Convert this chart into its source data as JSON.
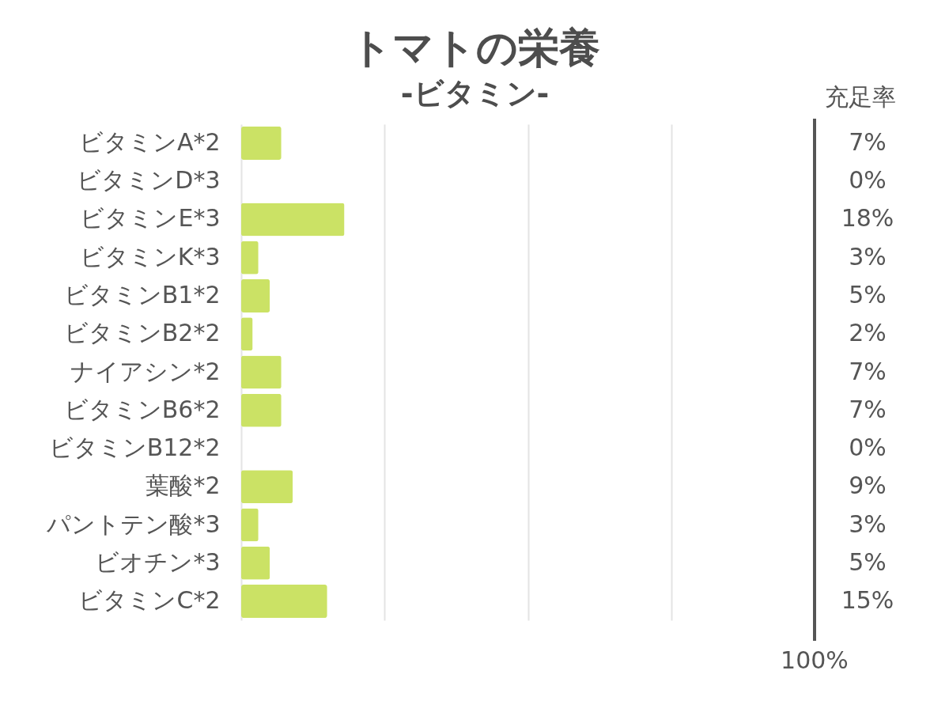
{
  "chart_data": {
    "type": "bar",
    "orientation": "horizontal",
    "title": "トマトの栄養",
    "subtitle": "-ビタミン-",
    "categories": [
      "ビタミンA*2",
      "ビタミンD*3",
      "ビタミンE*3",
      "ビタミンK*3",
      "ビタミンB1*2",
      "ビタミンB2*2",
      "ナイアシン*2",
      "ビタミンB6*2",
      "ビタミンB12*2",
      "葉酸*2",
      "パントテン酸*3",
      "ビオチン*3",
      "ビタミンC*2"
    ],
    "values": [
      7,
      0,
      18,
      3,
      5,
      2,
      7,
      7,
      0,
      9,
      3,
      5,
      15
    ],
    "value_labels": [
      "7%",
      "0%",
      "18%",
      "3%",
      "5%",
      "2%",
      "7%",
      "7%",
      "0%",
      "9%",
      "3%",
      "5%",
      "15%"
    ],
    "color": "#cbe265",
    "xlim": [
      0,
      100
    ],
    "xticks": [
      {
        "value": 0,
        "label": null
      },
      {
        "value": 25,
        "label": null
      },
      {
        "value": 50,
        "label": null
      },
      {
        "value": 75,
        "label": null
      }
    ],
    "tick_labels": "y",
    "grid": "x",
    "ref_lines": [
      {
        "axis": "x",
        "value": 100,
        "label": "100%",
        "color": "#555555"
      }
    ],
    "annotations": [
      "充足率"
    ]
  }
}
